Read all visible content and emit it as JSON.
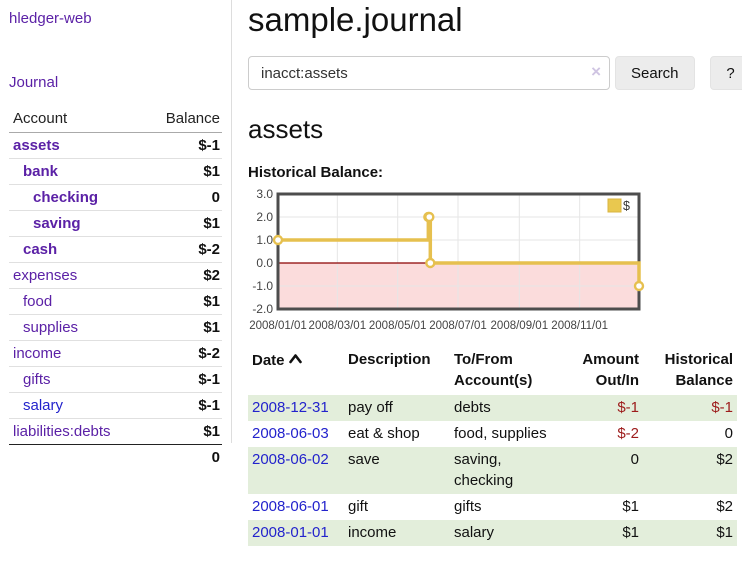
{
  "brand": "hledger-web",
  "nav": {
    "journal": "Journal"
  },
  "sidebar": {
    "account_header": "Account",
    "balance_header": "Balance",
    "accounts": [
      {
        "name": "assets",
        "depth": 1,
        "bold": true,
        "balance": "$-1",
        "neg": "strong"
      },
      {
        "name": "bank",
        "depth": 2,
        "bold": true,
        "balance": "$1"
      },
      {
        "name": "checking",
        "depth": 3,
        "bold": true,
        "balance": "0"
      },
      {
        "name": "saving",
        "depth": 3,
        "bold": true,
        "balance": "$1"
      },
      {
        "name": "cash",
        "depth": 2,
        "bold": true,
        "balance": "$-2",
        "neg": "strong"
      },
      {
        "name": "expenses",
        "depth": 1,
        "bold": false,
        "balance": "$2"
      },
      {
        "name": "food",
        "depth": 2,
        "bold": false,
        "balance": "$1"
      },
      {
        "name": "supplies",
        "depth": 2,
        "bold": false,
        "balance": "$1"
      },
      {
        "name": "income",
        "depth": 1,
        "bold": false,
        "balance": "$-2",
        "neg": "muted"
      },
      {
        "name": "gifts",
        "depth": 2,
        "bold": false,
        "balance": "$-1",
        "neg": "muted"
      },
      {
        "name": "salary",
        "depth": 2,
        "bold": false,
        "balance": "$-1",
        "neg": "muted",
        "link_color": "blue"
      },
      {
        "name": "liabilities:debts",
        "depth": 1,
        "bold": false,
        "balance": "$1"
      }
    ],
    "total": "0"
  },
  "page": {
    "title": "sample.journal"
  },
  "search": {
    "value": "inacct:assets",
    "clear": "×",
    "submit": "Search",
    "help": "?"
  },
  "account_view": {
    "title": "assets",
    "chart_title": "Historical Balance:"
  },
  "chart_data": {
    "type": "line",
    "step": true,
    "title": "Historical Balance:",
    "series": [
      {
        "name": "$",
        "color": "#e6c04f",
        "points": [
          {
            "x": "2008-01-01",
            "y": 1
          },
          {
            "x": "2008-06-01",
            "y": 2
          },
          {
            "x": "2008-06-02",
            "y": 2
          },
          {
            "x": "2008-06-03",
            "y": 0
          },
          {
            "x": "2008-12-31",
            "y": -1
          }
        ]
      }
    ],
    "xrange": [
      "2008-01-01",
      "2008-12-31"
    ],
    "ylim": [
      -2,
      3
    ],
    "yticks": [
      "3.0",
      "2.0",
      "1.0",
      "0.0",
      "-1.0",
      "-2.0"
    ],
    "xticks": [
      {
        "label": "2008/01/01",
        "date": "2008-01-01"
      },
      {
        "label": "2008/03/01",
        "date": "2008-03-01"
      },
      {
        "label": "2008/05/01",
        "date": "2008-05-01"
      },
      {
        "label": "2008/07/01",
        "date": "2008-07-01"
      },
      {
        "label": "2008/09/01",
        "date": "2008-09-01"
      },
      {
        "label": "2008/11/01",
        "date": "2008-11-01"
      }
    ],
    "legend": {
      "label": "$",
      "position": "top-right"
    },
    "grid": true,
    "negative_band_fill": "#fbdcdc",
    "zero_line_color": "#8b0000",
    "border_color": "#4d4d4d",
    "grid_color": "#e6e6e6"
  },
  "register": {
    "headers": {
      "date": "Date",
      "description": "Description",
      "accounts": "To/From Account(s)",
      "amount": "Amount Out/In",
      "balance": "Historical Balance"
    },
    "rows": [
      {
        "date": "2008-12-31",
        "description": "pay off",
        "accounts": "debts",
        "amount": "$-1",
        "amount_neg": true,
        "balance": "$-1",
        "balance_neg": true
      },
      {
        "date": "2008-06-03",
        "description": "eat & shop",
        "accounts": "food, supplies",
        "amount": "$-2",
        "amount_neg": true,
        "balance": "0",
        "balance_neg": false
      },
      {
        "date": "2008-06-02",
        "description": "save",
        "accounts": "saving, checking",
        "amount": "0",
        "amount_neg": false,
        "balance": "$2",
        "balance_neg": false
      },
      {
        "date": "2008-06-01",
        "description": "gift",
        "accounts": "gifts",
        "amount": "$1",
        "amount_neg": false,
        "balance": "$2",
        "balance_neg": false
      },
      {
        "date": "2008-01-01",
        "description": "income",
        "accounts": "salary",
        "amount": "$1",
        "amount_neg": false,
        "balance": "$1",
        "balance_neg": false
      }
    ]
  }
}
